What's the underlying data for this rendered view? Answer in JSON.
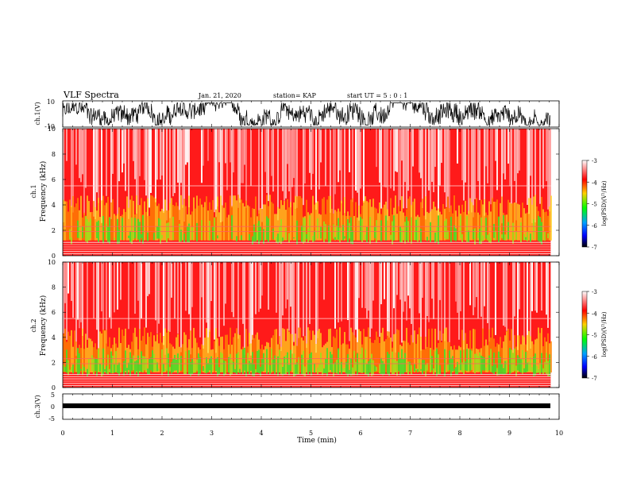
{
  "header": {
    "title": "VLF Spectra",
    "date": "Jan. 21, 2020",
    "station": "station= KAP",
    "start": "start  UT =   5 : 0  : 1"
  },
  "chart_data": [
    {
      "type": "line",
      "name": "ch1-waveform",
      "ylabel": "ch.1(V)",
      "ylim": [
        -10,
        10
      ],
      "yticks": [
        "10",
        "-10"
      ],
      "xlim": [
        0,
        10
      ]
    },
    {
      "type": "heatmap",
      "name": "ch1-spectrogram",
      "ylabel_top": "ch.1",
      "ylabel": "Frequency  (kHz)",
      "ylim": [
        0,
        10
      ],
      "yticks": [
        "0",
        "2",
        "4",
        "6",
        "8",
        "10"
      ],
      "xlim": [
        0,
        9.83
      ],
      "colorbar": {
        "label": "log(PSD)(V²/Hz)",
        "range": [
          -7,
          -3
        ],
        "ticks": [
          "-3",
          "-4",
          "-5",
          "-6",
          "-7"
        ]
      }
    },
    {
      "type": "heatmap",
      "name": "ch2-spectrogram",
      "ylabel_top": "ch.2",
      "ylabel": "Frequency  (kHz)",
      "ylim": [
        0,
        10
      ],
      "yticks": [
        "0",
        "2",
        "4",
        "6",
        "8",
        "10"
      ],
      "xlim": [
        0,
        9.83
      ],
      "colorbar": {
        "label": "log(PSD)(V²/Hz)",
        "range": [
          -7,
          -3
        ],
        "ticks": [
          "-3",
          "-4",
          "-5",
          "-6",
          "-7"
        ]
      }
    },
    {
      "type": "line",
      "name": "ch3-waveform",
      "ylabel": "ch.3(V)",
      "ylim": [
        -5,
        5
      ],
      "yticks": [
        "5",
        "0",
        "-5"
      ],
      "xlim": [
        0,
        10
      ]
    }
  ],
  "xaxis": {
    "label": "Time  (min)",
    "range": [
      0,
      10
    ],
    "ticks": [
      "0",
      "1",
      "2",
      "3",
      "4",
      "5",
      "6",
      "7",
      "8",
      "9",
      "10"
    ]
  }
}
